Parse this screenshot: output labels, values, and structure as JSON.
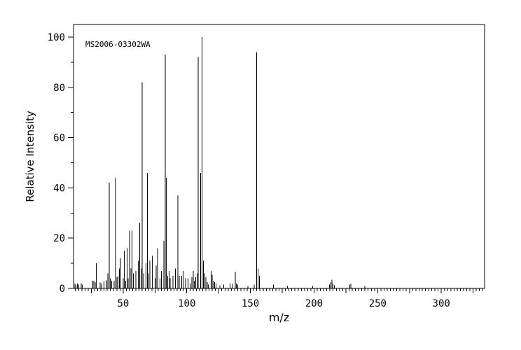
{
  "figure": {
    "background": "#ffffff",
    "foreground": "#000000",
    "sample_id": "MS2006-03302WA"
  },
  "chart_data": {
    "type": "bar",
    "subtype": "mass-spectrum",
    "title": "",
    "sample_id_annotation": "MS2006-03302WA",
    "xlabel": "m/z",
    "ylabel": "Relative Intensity",
    "xlim": [
      11,
      334
    ],
    "ylim": [
      0,
      105
    ],
    "grid": false,
    "x_tick_labels": [
      50,
      100,
      150,
      200,
      250,
      300
    ],
    "x_minor_tick_step": 2.5,
    "x_medium_tick_step": 25,
    "y_tick_labels": [
      0,
      20,
      40,
      60,
      80,
      100
    ],
    "y_minor_tick_step": 10,
    "y_major_tick_step": 20,
    "peaks": [
      [
        12,
        2
      ],
      [
        13,
        1.4
      ],
      [
        14,
        2
      ],
      [
        15,
        1.5
      ],
      [
        17,
        2
      ],
      [
        18,
        1.5
      ],
      [
        26,
        3
      ],
      [
        27,
        3
      ],
      [
        28,
        2.5
      ],
      [
        29,
        10
      ],
      [
        32,
        2.3
      ],
      [
        33,
        1.9
      ],
      [
        35,
        2.8
      ],
      [
        37,
        3.2
      ],
      [
        38,
        6
      ],
      [
        39,
        42
      ],
      [
        40,
        4
      ],
      [
        41,
        3
      ],
      [
        43,
        3
      ],
      [
        44,
        44
      ],
      [
        45,
        4.5
      ],
      [
        46,
        5
      ],
      [
        47,
        8
      ],
      [
        48,
        12
      ],
      [
        50,
        4
      ],
      [
        51,
        15
      ],
      [
        52,
        3
      ],
      [
        53,
        16
      ],
      [
        54,
        4
      ],
      [
        55,
        23
      ],
      [
        56,
        8
      ],
      [
        57,
        23
      ],
      [
        58,
        6
      ],
      [
        60,
        7
      ],
      [
        62,
        11
      ],
      [
        63,
        26
      ],
      [
        64,
        8
      ],
      [
        65,
        82
      ],
      [
        66,
        6
      ],
      [
        68,
        10
      ],
      [
        69,
        46
      ],
      [
        70,
        6
      ],
      [
        71,
        11
      ],
      [
        73,
        13
      ],
      [
        75,
        4
      ],
      [
        76,
        9
      ],
      [
        77,
        16
      ],
      [
        79,
        4
      ],
      [
        80,
        7
      ],
      [
        82,
        19
      ],
      [
        83,
        93
      ],
      [
        84,
        44
      ],
      [
        85,
        5
      ],
      [
        86,
        7
      ],
      [
        87,
        4
      ],
      [
        89,
        5
      ],
      [
        91,
        8
      ],
      [
        93,
        37
      ],
      [
        94,
        5
      ],
      [
        96,
        5
      ],
      [
        97,
        7
      ],
      [
        99,
        4
      ],
      [
        101,
        4
      ],
      [
        103,
        2
      ],
      [
        104,
        4.5
      ],
      [
        105,
        7
      ],
      [
        106,
        3
      ],
      [
        107,
        4.5
      ],
      [
        108,
        6
      ],
      [
        109,
        92
      ],
      [
        111,
        46
      ],
      [
        112,
        100
      ],
      [
        113,
        11
      ],
      [
        114,
        6
      ],
      [
        115,
        4.5
      ],
      [
        116,
        2.5
      ],
      [
        117,
        1.5
      ],
      [
        119,
        7
      ],
      [
        120,
        5.5
      ],
      [
        121,
        3
      ],
      [
        122,
        2.5
      ],
      [
        123,
        2
      ],
      [
        126,
        1.2
      ],
      [
        129,
        1.5
      ],
      [
        134,
        2
      ],
      [
        136,
        1.8
      ],
      [
        138,
        6.5
      ],
      [
        139,
        2
      ],
      [
        140,
        1.5
      ],
      [
        148,
        1
      ],
      [
        153,
        1.5
      ],
      [
        155,
        94
      ],
      [
        156,
        8
      ],
      [
        157,
        5
      ],
      [
        168,
        1.5
      ],
      [
        179,
        1
      ],
      [
        199,
        1
      ],
      [
        212,
        1.5
      ],
      [
        213,
        2.5
      ],
      [
        214,
        3.5
      ],
      [
        215,
        2
      ],
      [
        216,
        1.3
      ],
      [
        228,
        1.5
      ],
      [
        229,
        1.8
      ],
      [
        240,
        1
      ]
    ]
  }
}
